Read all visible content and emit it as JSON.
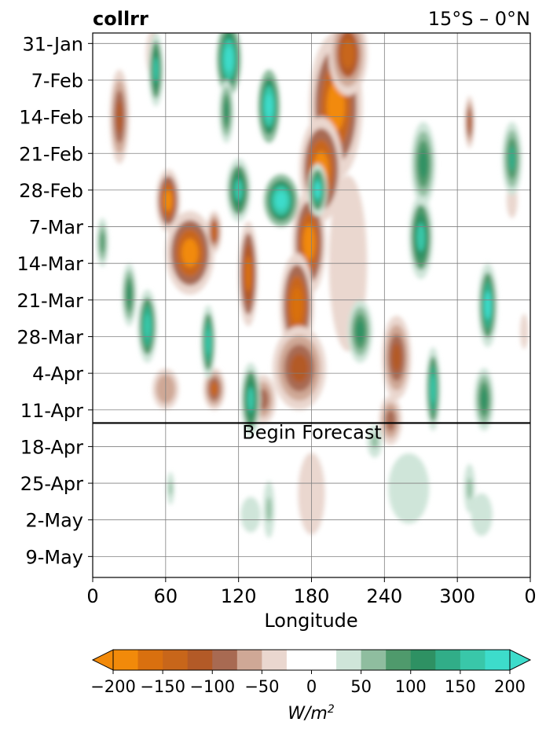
{
  "chart_data": {
    "type": "heatmap",
    "title_left": "collrr",
    "title_right": "15°S – 0°N",
    "xlabel": "Longitude",
    "ylabel": "",
    "x_ticks": [
      "0",
      "60",
      "120",
      "180",
      "240",
      "300",
      "0"
    ],
    "x_tick_values": [
      0,
      60,
      120,
      180,
      240,
      300,
      360
    ],
    "xlim": [
      0,
      360
    ],
    "y_ticks": [
      "31-Jan",
      "7-Feb",
      "14-Feb",
      "21-Feb",
      "28-Feb",
      "7-Mar",
      "14-Mar",
      "21-Mar",
      "28-Mar",
      "4-Apr",
      "11-Apr",
      "18-Apr",
      "25-Apr",
      "2-May",
      "9-May"
    ],
    "y_tick_days": [
      0,
      7,
      14,
      21,
      28,
      35,
      42,
      49,
      56,
      63,
      70,
      77,
      84,
      91,
      98
    ],
    "ylim_days": [
      -2,
      102
    ],
    "forecast_start_day": 72.5,
    "annotation": "Begin Forecast",
    "grid": true,
    "colorbar": {
      "label": "W/m2",
      "ticks": [
        "−200",
        "−150",
        "−100",
        "−50",
        "0",
        "50",
        "100",
        "150",
        "200"
      ],
      "levels": [
        -200,
        -175,
        -150,
        -125,
        -100,
        -75,
        -50,
        -25,
        25,
        50,
        75,
        100,
        125,
        150,
        175,
        200
      ],
      "colors": [
        "#f28a0a",
        "#d9700f",
        "#c8661a",
        "#b35a27",
        "#a86a52",
        "#cfa896",
        "#ead7cf",
        "#ffffff",
        "#cfe5d9",
        "#8fbd9f",
        "#4f9a6c",
        "#2e9163",
        "#31ad88",
        "#39c7a9",
        "#3ddccb"
      ],
      "extend": "both"
    },
    "features": [
      {
        "lon": 200,
        "day": 12,
        "w": 22,
        "h": 14,
        "value": -200
      },
      {
        "lon": 188,
        "day": 24,
        "w": 18,
        "h": 10,
        "value": -190
      },
      {
        "lon": 178,
        "day": 38,
        "w": 14,
        "h": 10,
        "value": -185
      },
      {
        "lon": 168,
        "day": 50,
        "w": 14,
        "h": 10,
        "value": -175
      },
      {
        "lon": 210,
        "day": 2,
        "w": 16,
        "h": 8,
        "value": -150
      },
      {
        "lon": 80,
        "day": 40,
        "w": 20,
        "h": 8,
        "value": -200
      },
      {
        "lon": 62,
        "day": 30,
        "w": 10,
        "h": 6,
        "value": -180
      },
      {
        "lon": 128,
        "day": 44,
        "w": 8,
        "h": 10,
        "value": -160
      },
      {
        "lon": 100,
        "day": 36,
        "w": 6,
        "h": 4,
        "value": -140
      },
      {
        "lon": 100,
        "day": 66,
        "w": 9,
        "h": 4,
        "value": -130
      },
      {
        "lon": 170,
        "day": 62,
        "w": 22,
        "h": 8,
        "value": -110
      },
      {
        "lon": 250,
        "day": 60,
        "w": 12,
        "h": 8,
        "value": -120
      },
      {
        "lon": 245,
        "day": 72,
        "w": 12,
        "h": 6,
        "value": -90
      },
      {
        "lon": 22,
        "day": 14,
        "w": 8,
        "h": 9,
        "value": -120
      },
      {
        "lon": 310,
        "day": 15,
        "w": 4,
        "h": 5,
        "value": -120
      },
      {
        "lon": 180,
        "day": 88,
        "w": 8,
        "h": 9,
        "value": -110
      },
      {
        "lon": 180,
        "day": 86,
        "w": 20,
        "h": 14,
        "value": -50
      },
      {
        "lon": 60,
        "day": 66,
        "w": 14,
        "h": 5,
        "value": -70
      },
      {
        "lon": 140,
        "day": 68,
        "w": 14,
        "h": 6,
        "value": -80
      },
      {
        "lon": 355,
        "day": 55,
        "w": 6,
        "h": 6,
        "value": -40
      },
      {
        "lon": 345,
        "day": 30,
        "w": 8,
        "h": 6,
        "value": -40
      },
      {
        "lon": 50,
        "day": 2,
        "w": 8,
        "h": 6,
        "value": -60
      },
      {
        "lon": 210,
        "day": 42,
        "w": 28,
        "h": 30,
        "value": -40
      },
      {
        "lon": 112,
        "day": 3,
        "w": 10,
        "h": 7,
        "value": 200
      },
      {
        "lon": 145,
        "day": 12,
        "w": 9,
        "h": 7,
        "value": 200
      },
      {
        "lon": 155,
        "day": 30,
        "w": 14,
        "h": 5,
        "value": 200
      },
      {
        "lon": 185,
        "day": 28,
        "w": 8,
        "h": 5,
        "value": 180
      },
      {
        "lon": 120,
        "day": 28,
        "w": 10,
        "h": 6,
        "value": 150
      },
      {
        "lon": 52,
        "day": 5,
        "w": 6,
        "h": 7,
        "value": 150
      },
      {
        "lon": 110,
        "day": 13,
        "w": 6,
        "h": 6,
        "value": 110
      },
      {
        "lon": 270,
        "day": 37,
        "w": 10,
        "h": 8,
        "value": 150
      },
      {
        "lon": 272,
        "day": 23,
        "w": 10,
        "h": 8,
        "value": 120
      },
      {
        "lon": 325,
        "day": 50,
        "w": 8,
        "h": 8,
        "value": 190
      },
      {
        "lon": 345,
        "day": 22,
        "w": 8,
        "h": 7,
        "value": 130
      },
      {
        "lon": 45,
        "day": 54,
        "w": 8,
        "h": 7,
        "value": 170
      },
      {
        "lon": 95,
        "day": 57,
        "w": 6,
        "h": 7,
        "value": 170
      },
      {
        "lon": 130,
        "day": 68,
        "w": 8,
        "h": 7,
        "value": 150
      },
      {
        "lon": 220,
        "day": 55,
        "w": 10,
        "h": 6,
        "value": 110
      },
      {
        "lon": 280,
        "day": 66,
        "w": 6,
        "h": 8,
        "value": 170
      },
      {
        "lon": 30,
        "day": 48,
        "w": 6,
        "h": 6,
        "value": 100
      },
      {
        "lon": 322,
        "day": 68,
        "w": 8,
        "h": 6,
        "value": 120
      },
      {
        "lon": 8,
        "day": 38,
        "w": 6,
        "h": 6,
        "value": 80
      },
      {
        "lon": 260,
        "day": 85,
        "w": 30,
        "h": 12,
        "value": 40
      },
      {
        "lon": 320,
        "day": 90,
        "w": 26,
        "h": 12,
        "value": 30
      },
      {
        "lon": 130,
        "day": 90,
        "w": 24,
        "h": 10,
        "value": 30
      },
      {
        "lon": 145,
        "day": 89,
        "w": 6,
        "h": 7,
        "value": 60
      },
      {
        "lon": 64,
        "day": 85,
        "w": 4,
        "h": 4,
        "value": 60
      },
      {
        "lon": 310,
        "day": 85,
        "w": 6,
        "h": 6,
        "value": 50
      },
      {
        "lon": 232,
        "day": 76,
        "w": 8,
        "h": 4,
        "value": 50
      }
    ]
  }
}
